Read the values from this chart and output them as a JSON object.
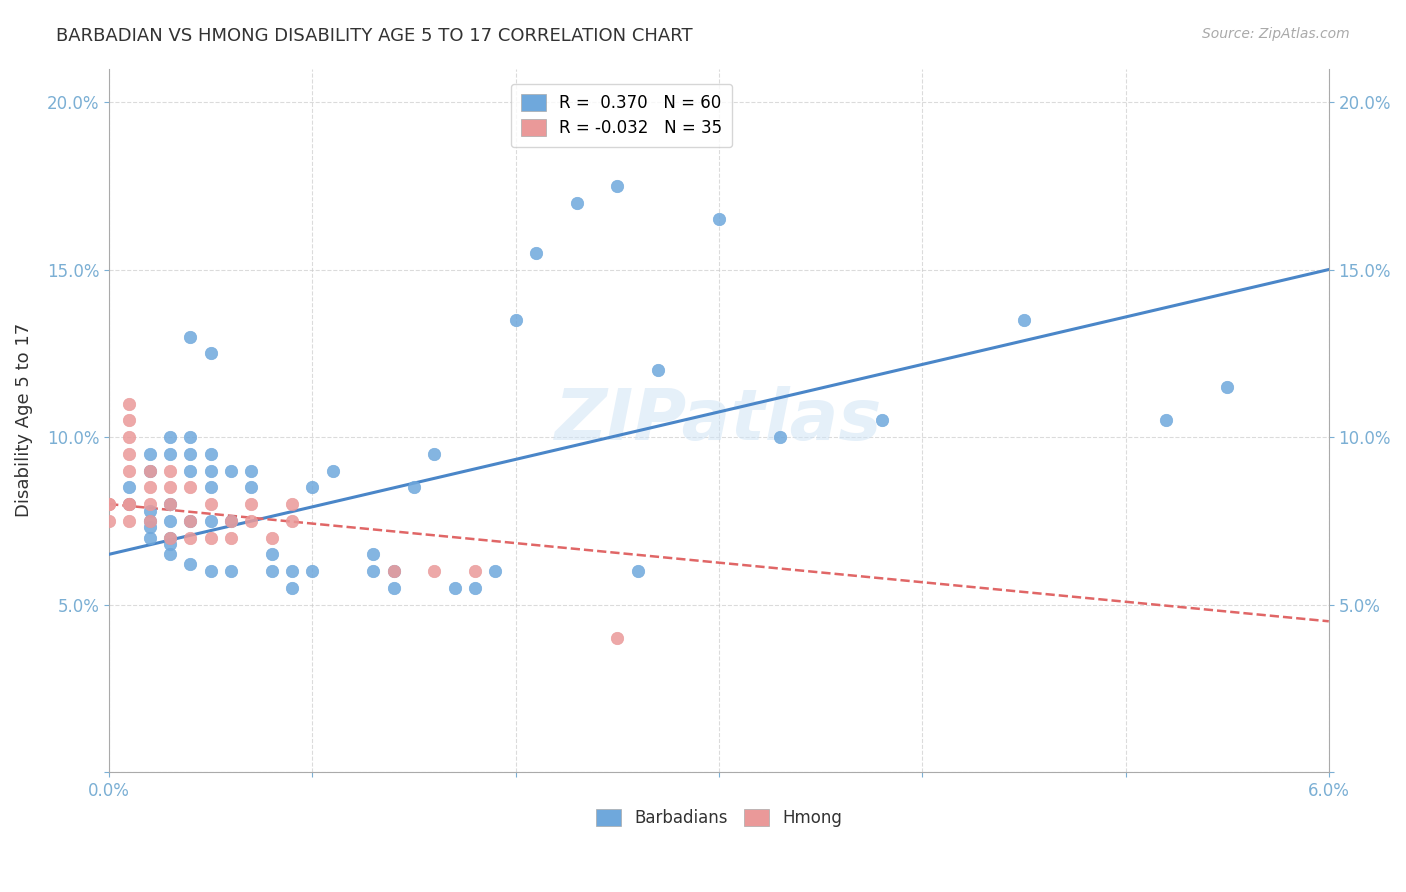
{
  "title": "BARBADIAN VS HMONG DISABILITY AGE 5 TO 17 CORRELATION CHART",
  "source": "Source: ZipAtlas.com",
  "xlabel": "",
  "ylabel": "Disability Age 5 to 17",
  "watermark": "ZIPatlas",
  "xlim": [
    0.0,
    0.06
  ],
  "ylim": [
    0.0,
    0.21
  ],
  "xticks": [
    0.0,
    0.01,
    0.02,
    0.03,
    0.04,
    0.05,
    0.06
  ],
  "yticks": [
    0.0,
    0.05,
    0.1,
    0.15,
    0.2
  ],
  "ytick_labels": [
    "",
    "5.0%",
    "10.0%",
    "15.0%",
    "20.0%"
  ],
  "xtick_labels": [
    "0.0%",
    "",
    "",
    "",
    "",
    "",
    "6.0%"
  ],
  "blue_R": 0.37,
  "blue_N": 60,
  "pink_R": -0.032,
  "pink_N": 35,
  "blue_color": "#6fa8dc",
  "pink_color": "#ea9999",
  "blue_line_color": "#4a86c8",
  "pink_line_color": "#e06666",
  "axis_color": "#7bafd4",
  "tick_color": "#7bafd4",
  "grid_color": "#cccccc",
  "title_color": "#333333",
  "blue_scatter_x": [
    0.001,
    0.001,
    0.002,
    0.002,
    0.002,
    0.002,
    0.002,
    0.002,
    0.003,
    0.003,
    0.003,
    0.003,
    0.003,
    0.003,
    0.003,
    0.004,
    0.004,
    0.004,
    0.004,
    0.004,
    0.004,
    0.005,
    0.005,
    0.005,
    0.005,
    0.005,
    0.005,
    0.006,
    0.006,
    0.006,
    0.007,
    0.007,
    0.008,
    0.008,
    0.009,
    0.009,
    0.01,
    0.01,
    0.011,
    0.013,
    0.013,
    0.014,
    0.014,
    0.015,
    0.016,
    0.017,
    0.018,
    0.019,
    0.02,
    0.021,
    0.023,
    0.025,
    0.026,
    0.027,
    0.03,
    0.033,
    0.038,
    0.045,
    0.052,
    0.055
  ],
  "blue_scatter_y": [
    0.08,
    0.085,
    0.07,
    0.075,
    0.09,
    0.095,
    0.078,
    0.073,
    0.065,
    0.07,
    0.075,
    0.08,
    0.095,
    0.1,
    0.068,
    0.062,
    0.075,
    0.09,
    0.095,
    0.1,
    0.13,
    0.06,
    0.075,
    0.085,
    0.09,
    0.095,
    0.125,
    0.06,
    0.075,
    0.09,
    0.085,
    0.09,
    0.06,
    0.065,
    0.055,
    0.06,
    0.085,
    0.06,
    0.09,
    0.06,
    0.065,
    0.055,
    0.06,
    0.085,
    0.095,
    0.055,
    0.055,
    0.06,
    0.135,
    0.155,
    0.17,
    0.175,
    0.06,
    0.12,
    0.165,
    0.1,
    0.105,
    0.135,
    0.105,
    0.115
  ],
  "pink_scatter_x": [
    0.0,
    0.0,
    0.0,
    0.001,
    0.001,
    0.001,
    0.001,
    0.001,
    0.001,
    0.001,
    0.001,
    0.002,
    0.002,
    0.002,
    0.002,
    0.003,
    0.003,
    0.003,
    0.003,
    0.004,
    0.004,
    0.004,
    0.005,
    0.005,
    0.006,
    0.006,
    0.007,
    0.007,
    0.008,
    0.009,
    0.009,
    0.014,
    0.016,
    0.018,
    0.025
  ],
  "pink_scatter_y": [
    0.08,
    0.075,
    0.08,
    0.075,
    0.08,
    0.09,
    0.095,
    0.1,
    0.105,
    0.11,
    0.08,
    0.085,
    0.09,
    0.075,
    0.08,
    0.07,
    0.08,
    0.085,
    0.09,
    0.07,
    0.075,
    0.085,
    0.07,
    0.08,
    0.07,
    0.075,
    0.075,
    0.08,
    0.07,
    0.075,
    0.08,
    0.06,
    0.06,
    0.06,
    0.04
  ],
  "blue_line_x": [
    0.0,
    0.06
  ],
  "blue_line_y": [
    0.065,
    0.15
  ],
  "pink_line_x": [
    0.0,
    0.06
  ],
  "pink_line_y": [
    0.08,
    0.045
  ],
  "background_color": "#ffffff",
  "legend_box_color": "#ffffff",
  "legend_edge_color": "#cccccc"
}
